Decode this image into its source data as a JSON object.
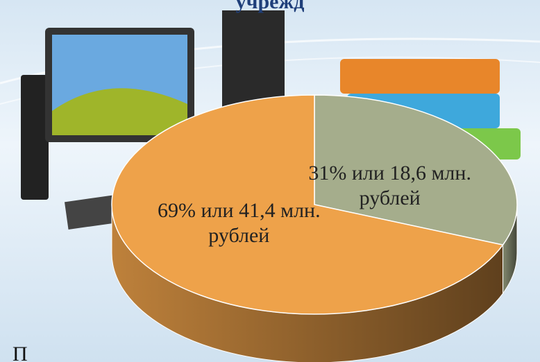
{
  "chart_data": {
    "type": "pie",
    "title": "учрежд",
    "values": [
      31,
      69
    ],
    "value_labels": [
      "31% или  18,6 млн. рублей",
      "69% или 41,4 млн. рублей"
    ],
    "colors": [
      "#a5ad8c",
      "#eea24a"
    ]
  },
  "footer": "П"
}
